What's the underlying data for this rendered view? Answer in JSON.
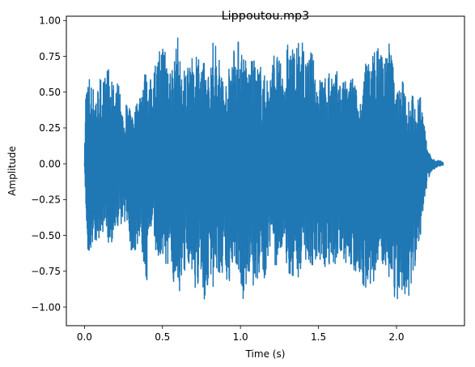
{
  "chart_data": {
    "type": "line",
    "title": "Lippoutou.mp3",
    "xlabel": "Time (s)",
    "ylabel": "Amplitude",
    "xlim": [
      -0.116,
      2.436
    ],
    "ylim": [
      -1.13,
      1.03
    ],
    "x_ticks": [
      0.0,
      0.5,
      1.0,
      1.5,
      2.0
    ],
    "x_tick_labels": [
      "0.0",
      "0.5",
      "1.0",
      "1.5",
      "2.0"
    ],
    "y_ticks": [
      -1.0,
      -0.75,
      -0.5,
      -0.25,
      0.0,
      0.25,
      0.5,
      0.75,
      1.0
    ],
    "y_tick_labels": [
      "−1.00",
      "−0.75",
      "−0.50",
      "−0.25",
      "0.00",
      "0.25",
      "0.50",
      "0.75",
      "1.00"
    ],
    "grid": false,
    "color": "#1f77b4",
    "series": [
      {
        "x": [
          0.0,
          0.01,
          0.02,
          0.03,
          0.05,
          0.08,
          0.1,
          0.13,
          0.15,
          0.18,
          0.2,
          0.22,
          0.25,
          0.27,
          0.3,
          0.33,
          0.35,
          0.38,
          0.4,
          0.42,
          0.45,
          0.47,
          0.5,
          0.52,
          0.55,
          0.57,
          0.6,
          0.62,
          0.65,
          0.68,
          0.7,
          0.72,
          0.75,
          0.77,
          0.8,
          0.82,
          0.85,
          0.87,
          0.9,
          0.92,
          0.95,
          0.97,
          1.0,
          1.02,
          1.05,
          1.08,
          1.1,
          1.13,
          1.15,
          1.18,
          1.2,
          1.22,
          1.25,
          1.28,
          1.3,
          1.33,
          1.35,
          1.38,
          1.4,
          1.42,
          1.45,
          1.48,
          1.5,
          1.52,
          1.55,
          1.58,
          1.6,
          1.62,
          1.65,
          1.67,
          1.7,
          1.72,
          1.75,
          1.77,
          1.8,
          1.82,
          1.85,
          1.88,
          1.9,
          1.92,
          1.95,
          1.98,
          2.0,
          2.02,
          2.05,
          2.07,
          2.1,
          2.12,
          2.15,
          2.17,
          2.2,
          2.22,
          2.25,
          2.27,
          2.3
        ],
        "y_max": [
          0.02,
          0.64,
          0.6,
          0.63,
          0.55,
          0.52,
          0.62,
          0.6,
          0.7,
          0.55,
          0.6,
          0.58,
          0.28,
          0.45,
          0.35,
          0.42,
          0.5,
          0.68,
          0.62,
          0.58,
          0.72,
          0.75,
          0.88,
          0.92,
          0.7,
          0.72,
          0.9,
          0.65,
          0.68,
          0.85,
          0.62,
          0.88,
          0.7,
          0.72,
          0.62,
          0.86,
          0.85,
          0.72,
          0.58,
          0.62,
          0.88,
          0.86,
          0.88,
          0.8,
          0.68,
          0.74,
          0.7,
          0.7,
          0.62,
          0.64,
          0.68,
          0.84,
          0.72,
          0.64,
          0.85,
          0.82,
          0.8,
          0.86,
          0.9,
          0.68,
          0.82,
          0.67,
          0.58,
          0.64,
          0.6,
          0.72,
          0.62,
          0.65,
          0.58,
          0.58,
          0.58,
          0.65,
          0.48,
          0.45,
          0.7,
          0.74,
          0.8,
          0.82,
          0.88,
          0.72,
          0.9,
          0.7,
          0.52,
          0.55,
          0.6,
          0.48,
          0.52,
          0.38,
          0.55,
          0.34,
          0.1,
          0.05,
          0.02,
          0.03,
          0.01
        ],
        "y_min": [
          -0.02,
          -0.35,
          -0.62,
          -0.64,
          -0.58,
          -0.55,
          -0.5,
          -0.52,
          -0.55,
          -0.55,
          -0.5,
          -0.42,
          -0.42,
          -0.38,
          -0.62,
          -0.65,
          -0.5,
          -0.72,
          -0.84,
          -0.48,
          -0.55,
          -0.7,
          -0.68,
          -0.72,
          -0.8,
          -0.82,
          -0.88,
          -0.92,
          -0.7,
          -0.7,
          -0.85,
          -0.88,
          -0.9,
          -1.0,
          -0.8,
          -0.96,
          -0.74,
          -0.8,
          -0.75,
          -0.92,
          -0.68,
          -0.72,
          -0.85,
          -0.99,
          -0.8,
          -0.88,
          -0.85,
          -0.75,
          -0.85,
          -0.62,
          -0.62,
          -0.72,
          -0.7,
          -0.52,
          -0.8,
          -0.85,
          -0.72,
          -0.82,
          -0.62,
          -0.68,
          -0.7,
          -0.75,
          -0.82,
          -0.78,
          -0.72,
          -0.7,
          -0.74,
          -0.64,
          -0.7,
          -0.72,
          -0.75,
          -0.82,
          -0.72,
          -0.8,
          -0.88,
          -0.82,
          -0.9,
          -0.72,
          -0.93,
          -0.68,
          -0.78,
          -0.98,
          -0.96,
          -1.02,
          -0.9,
          -0.97,
          -0.85,
          -0.72,
          -0.55,
          -0.34,
          -0.12,
          -0.06,
          -0.03,
          -0.02,
          -0.01
        ]
      }
    ]
  }
}
